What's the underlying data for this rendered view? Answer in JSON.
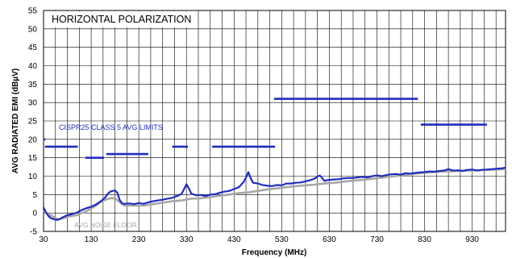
{
  "chart_data": {
    "type": "line",
    "title": "HORIZONTAL POLARIZATION",
    "xlabel": "Frequency (MHz)",
    "ylabel": "AVG RADIATED EMI (dBµV)",
    "xlim": [
      30,
      1000
    ],
    "ylim": [
      -5,
      55
    ],
    "x_ticks": [
      30,
      130,
      230,
      330,
      430,
      530,
      630,
      730,
      830,
      930
    ],
    "y_ticks": [
      -5,
      0,
      5,
      10,
      15,
      20,
      25,
      30,
      35,
      40,
      45,
      50,
      55
    ],
    "x_grid_step": 25,
    "grid": true,
    "annotations": {
      "limits_label": "CISPR25 CLASS 5 AVG LIMITS",
      "noise_floor_label": "AVG NOISE FLOOR"
    },
    "colors": {
      "emission": "#1f2dbf",
      "limits": "#1f2dbf",
      "noise_floor": "#a6a6a6",
      "grid": "#000000"
    },
    "limits": [
      {
        "x": [
          30,
          34
        ],
        "value": 20
      },
      {
        "x": [
          33,
          102
        ],
        "value": 18
      },
      {
        "x": [
          118,
          157
        ],
        "value": 15
      },
      {
        "x": [
          162,
          250
        ],
        "value": 16
      },
      {
        "x": [
          300,
          333
        ],
        "value": 18
      },
      {
        "x": [
          384,
          516
        ],
        "value": 18
      },
      {
        "x": [
          514,
          816
        ],
        "value": 31
      },
      {
        "x": [
          822,
          961
        ],
        "value": 24
      }
    ],
    "series": [
      {
        "name": "AVG NOISE FLOOR",
        "x": [
          30,
          40,
          50,
          60,
          70,
          80,
          90,
          100,
          110,
          120,
          130,
          140,
          150,
          160,
          170,
          180,
          190,
          200,
          220,
          240,
          260,
          280,
          300,
          320,
          340,
          360,
          380,
          400,
          420,
          440,
          460,
          480,
          500,
          520,
          540,
          560,
          580,
          600,
          620,
          640,
          660,
          680,
          700,
          720,
          740,
          760,
          780,
          800,
          820,
          840,
          860,
          880,
          900,
          920,
          940,
          960,
          980,
          1000
        ],
        "values": [
          0.6,
          -0.3,
          -1.0,
          -1.7,
          -1.5,
          -1.0,
          -0.8,
          -0.6,
          0.0,
          0.5,
          1.2,
          2.0,
          3.0,
          3.6,
          4.0,
          4.0,
          2.9,
          2.0,
          2.0,
          2.0,
          2.4,
          2.8,
          3.2,
          3.4,
          3.9,
          4.0,
          4.3,
          4.7,
          5.0,
          5.4,
          5.6,
          6.0,
          6.4,
          6.7,
          7.0,
          7.3,
          7.5,
          7.7,
          8.0,
          8.2,
          8.5,
          8.8,
          9.0,
          9.3,
          9.6,
          9.9,
          10.2,
          10.5,
          10.8,
          11.0,
          11.2,
          11.3,
          11.4,
          11.5,
          11.6,
          11.7,
          11.8,
          11.9
        ]
      },
      {
        "name": "HORIZONTAL POLARIZATION",
        "x": [
          30,
          35,
          40,
          45,
          50,
          55,
          60,
          65,
          70,
          75,
          80,
          90,
          100,
          110,
          120,
          130,
          140,
          150,
          155,
          160,
          165,
          170,
          175,
          180,
          185,
          190,
          195,
          200,
          210,
          220,
          230,
          240,
          250,
          260,
          270,
          280,
          290,
          300,
          310,
          320,
          325,
          330,
          335,
          340,
          350,
          360,
          370,
          380,
          390,
          400,
          410,
          420,
          430,
          440,
          450,
          455,
          460,
          465,
          470,
          480,
          490,
          500,
          510,
          520,
          530,
          540,
          550,
          560,
          570,
          580,
          590,
          600,
          605,
          610,
          615,
          620,
          625,
          630,
          640,
          650,
          660,
          670,
          680,
          690,
          700,
          710,
          720,
          730,
          740,
          750,
          760,
          770,
          780,
          790,
          800,
          810,
          820,
          830,
          840,
          850,
          860,
          870,
          880,
          890,
          900,
          910,
          920,
          930,
          940,
          950,
          960,
          970,
          980,
          990,
          1000
        ],
        "values": [
          1.5,
          0.2,
          -0.8,
          -1.4,
          -1.6,
          -1.8,
          -1.9,
          -1.6,
          -1.2,
          -0.9,
          -0.6,
          -0.3,
          0.1,
          0.8,
          1.3,
          1.7,
          2.3,
          3.2,
          3.7,
          4.3,
          5.2,
          5.8,
          6.0,
          6.1,
          5.5,
          3.5,
          2.6,
          2.5,
          2.6,
          2.4,
          2.7,
          2.5,
          2.9,
          3.2,
          3.4,
          3.6,
          3.9,
          4.1,
          4.6,
          5.2,
          6.5,
          7.8,
          6.7,
          5.3,
          4.8,
          4.9,
          4.6,
          5.0,
          5.1,
          5.5,
          5.8,
          6.0,
          6.5,
          7.0,
          8.4,
          9.6,
          11.1,
          9.4,
          8.2,
          8.0,
          7.6,
          7.4,
          7.3,
          7.6,
          7.5,
          8.0,
          8.0,
          8.2,
          8.3,
          8.6,
          8.9,
          9.4,
          9.9,
          10.2,
          9.5,
          8.7,
          8.9,
          9.0,
          9.1,
          9.2,
          9.4,
          9.5,
          9.5,
          9.7,
          9.8,
          9.7,
          10.0,
          10.2,
          10.0,
          10.3,
          10.5,
          10.6,
          10.4,
          10.8,
          10.7,
          10.9,
          11.0,
          11.1,
          11.3,
          11.2,
          11.4,
          11.5,
          11.9,
          11.5,
          11.6,
          11.4,
          11.7,
          11.8,
          11.5,
          11.7,
          11.8,
          11.9,
          12.0,
          12.1,
          12.3
        ]
      }
    ]
  }
}
